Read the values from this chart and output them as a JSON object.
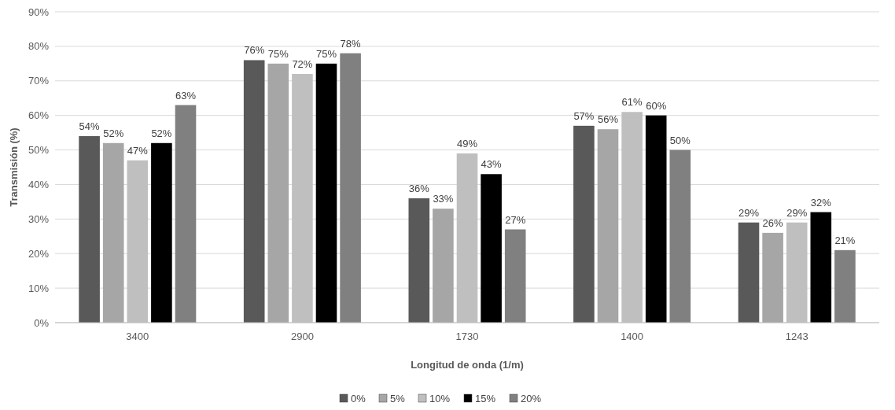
{
  "chart_data": {
    "type": "bar",
    "xlabel": "Longitud de onda (1/m)",
    "ylabel": "Transmisión (%)",
    "categories": [
      "3400",
      "2900",
      "1730",
      "1400",
      "1243"
    ],
    "series": [
      {
        "name": "0%",
        "color": "#595959",
        "values": [
          54,
          76,
          36,
          57,
          29
        ],
        "value_labels": [
          "54%",
          "76%",
          "36%",
          "57%",
          "29%"
        ]
      },
      {
        "name": "5%",
        "color": "#a6a6a6",
        "values": [
          52,
          75,
          33,
          56,
          26
        ],
        "value_labels": [
          "52%",
          "75%",
          "33%",
          "56%",
          "26%"
        ]
      },
      {
        "name": "10%",
        "color": "#bfbfbf",
        "values": [
          47,
          72,
          49,
          61,
          29
        ],
        "value_labels": [
          "47%",
          "72%",
          "49%",
          "61%",
          "29%"
        ]
      },
      {
        "name": "15%",
        "color": "#000000",
        "values": [
          52,
          75,
          43,
          60,
          32
        ],
        "value_labels": [
          "52%",
          "75%",
          "43%",
          "60%",
          "32%"
        ]
      },
      {
        "name": "20%",
        "color": "#808080",
        "values": [
          63,
          78,
          27,
          50,
          21
        ],
        "value_labels": [
          "63%",
          "78%",
          "27%",
          "50%",
          "21%"
        ]
      }
    ],
    "ylim": [
      0,
      90
    ],
    "yticks": [
      {
        "value": 0,
        "label": "0%"
      },
      {
        "value": 10,
        "label": "10%"
      },
      {
        "value": 20,
        "label": "20%"
      },
      {
        "value": 30,
        "label": "30%"
      },
      {
        "value": 40,
        "label": "40%"
      },
      {
        "value": 50,
        "label": "50%"
      },
      {
        "value": 60,
        "label": "60%"
      },
      {
        "value": 70,
        "label": "70%"
      },
      {
        "value": 80,
        "label": "80%"
      },
      {
        "value": 90,
        "label": "90%"
      }
    ],
    "grid": "y",
    "legend": "bottom"
  }
}
